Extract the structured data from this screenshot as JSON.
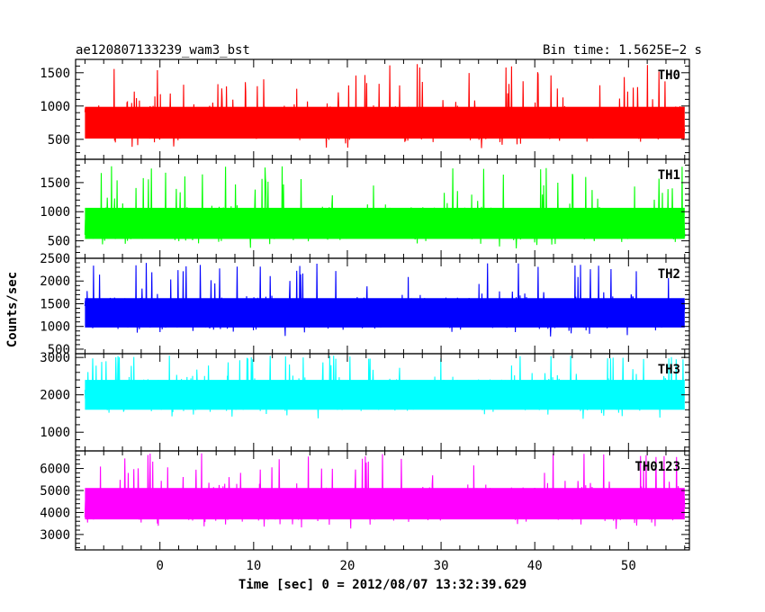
{
  "header": {
    "left_title": "ae120807133239_wam3_bst",
    "right_title": "Bin time: 1.5625E−2 s"
  },
  "chart_data": {
    "type": "line",
    "title": "ae120807133239_wam3_bst",
    "subtitle": "Bin time: 1.5625E−2 s",
    "xlabel": "Time [sec] 0 = 2012/08/07 13:32:39.629",
    "ylabel": "Counts/sec",
    "xlim": [
      -9,
      56.5
    ],
    "x_ticks": [
      0,
      10,
      20,
      30,
      40,
      50
    ],
    "x_range_data": [
      -8,
      56
    ],
    "legend_placement": "top-right label inside each panel",
    "grid": false,
    "panels": [
      {
        "name": "TH0",
        "color": "#ff0000",
        "ylim": [
          200,
          1700
        ],
        "y_ticks": [
          500,
          1000,
          1500
        ],
        "baseline": 750,
        "low": 300,
        "high": 1700
      },
      {
        "name": "TH1",
        "color": "#00ff00",
        "ylim": [
          200,
          1900
        ],
        "y_ticks": [
          500,
          1000,
          1500
        ],
        "baseline": 800,
        "low": 280,
        "high": 1850
      },
      {
        "name": "TH2",
        "color": "#0000ff",
        "ylim": [
          400,
          2500
        ],
        "y_ticks": [
          500,
          1000,
          1500,
          2000,
          2500
        ],
        "baseline": 1300,
        "low": 500,
        "high": 2400
      },
      {
        "name": "TH3",
        "color": "#00ffff",
        "ylim": [
          500,
          3100
        ],
        "y_ticks": [
          1000,
          2000,
          3000
        ],
        "baseline": 2000,
        "low": 700,
        "high": 3050
      },
      {
        "name": "TH0123",
        "color": "#ff00ff",
        "ylim": [
          2300,
          6800
        ],
        "y_ticks": [
          3000,
          4000,
          5000,
          6000
        ],
        "baseline": 4400,
        "low": 2500,
        "high": 6700
      }
    ]
  }
}
